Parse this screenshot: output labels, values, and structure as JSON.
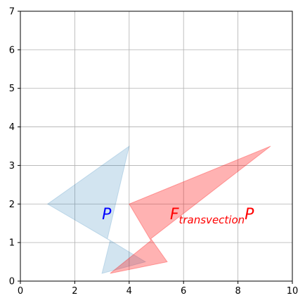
{
  "chart_data": {
    "type": "area",
    "xlim": [
      0,
      10
    ],
    "ylim": [
      0,
      7
    ],
    "x_ticks": [
      0,
      2,
      4,
      6,
      8,
      10
    ],
    "y_ticks": [
      0,
      1,
      2,
      3,
      4,
      5,
      6,
      7
    ],
    "grid": true,
    "series": [
      {
        "color": "#1f77b4",
        "opacity": 0.2,
        "points": [
          [
            1.0,
            2.0
          ],
          [
            4.0,
            3.5
          ],
          [
            3.2,
            1.1
          ],
          [
            4.6,
            0.5
          ],
          [
            3.0,
            0.2
          ],
          [
            3.3,
            1.05
          ]
        ]
      },
      {
        "color": "#ff0000",
        "opacity": 0.3,
        "points": [
          [
            4.0,
            2.0
          ],
          [
            9.2,
            3.5
          ],
          [
            4.8,
            1.1
          ],
          [
            5.4,
            0.5
          ],
          [
            3.3,
            0.2
          ],
          [
            4.8,
            1.05
          ]
        ]
      }
    ],
    "annotations": [
      {
        "main": "P",
        "sub": "",
        "post": "",
        "x": 3.0,
        "y": 1.6,
        "color": "#0000ff"
      },
      {
        "main": "F",
        "sub": "transvection",
        "post": "P",
        "x": 5.5,
        "y": 1.6,
        "color": "#ff0000"
      }
    ]
  }
}
